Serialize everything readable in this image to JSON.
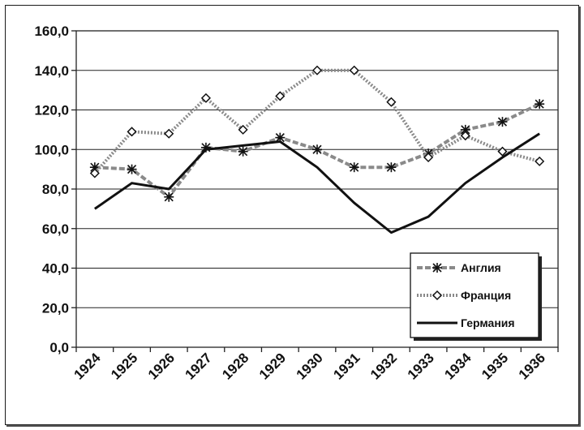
{
  "chart_data": {
    "type": "line",
    "categories": [
      "1924",
      "1925",
      "1926",
      "1927",
      "1928",
      "1929",
      "1930",
      "1931",
      "1932",
      "1933",
      "1934",
      "1935",
      "1936"
    ],
    "ylim": [
      0,
      160
    ],
    "yticks": [
      0,
      20,
      40,
      60,
      80,
      100,
      120,
      140,
      160
    ],
    "ytick_labels": [
      "0,0",
      "20,0",
      "40,0",
      "60,0",
      "80,0",
      "100,0",
      "120,0",
      "140,0",
      "160,0"
    ],
    "grid": true,
    "legend_position": "bottom-right",
    "series": [
      {
        "name": "Англия",
        "marker": "asterisk",
        "style": "dashed-gray",
        "color": "#8a8a8a",
        "points": [
          {
            "x": "1924",
            "y": 91
          },
          {
            "x": "1925",
            "y": 90
          },
          {
            "x": "1926",
            "y": 76
          },
          {
            "x": "1927",
            "y": 101
          },
          {
            "x": "1928",
            "y": 99
          },
          {
            "x": "1929",
            "y": 106
          },
          {
            "x": "1930",
            "y": 100
          },
          {
            "x": "1931",
            "y": 91
          },
          {
            "x": "1932",
            "y": 91
          },
          {
            "x": "1933",
            "y": 98
          },
          {
            "x": "1934",
            "y": 110
          },
          {
            "x": "1935",
            "y": 114
          },
          {
            "x": "1936",
            "y": 123
          }
        ]
      },
      {
        "name": "Франция",
        "marker": "diamond",
        "style": "dotted-gray",
        "color": "#8a8a8a",
        "points": [
          {
            "x": "1924",
            "y": 88
          },
          {
            "x": "1925",
            "y": 109
          },
          {
            "x": "1926",
            "y": 108
          },
          {
            "x": "1927",
            "y": 126
          },
          {
            "x": "1928",
            "y": 110
          },
          {
            "x": "1929",
            "y": 127
          },
          {
            "x": "1930",
            "y": 140
          },
          {
            "x": "1931",
            "y": 140
          },
          {
            "x": "1932",
            "y": 124
          },
          {
            "x": "1933",
            "y": 96
          },
          {
            "x": "1934",
            "y": 107
          },
          {
            "x": "1935",
            "y": 99
          },
          {
            "x": "1936",
            "y": 94
          }
        ]
      },
      {
        "name": "Германия",
        "marker": "none",
        "style": "solid",
        "color": "#111111",
        "points": [
          {
            "x": "1924",
            "y": 70
          },
          {
            "x": "1925",
            "y": 83
          },
          {
            "x": "1926",
            "y": 80
          },
          {
            "x": "1927",
            "y": 100
          },
          {
            "x": "1928",
            "y": 102
          },
          {
            "x": "1929",
            "y": 104
          },
          {
            "x": "1930",
            "y": 91
          },
          {
            "x": "1931",
            "y": 73
          },
          {
            "x": "1932",
            "y": 58
          },
          {
            "x": "1933",
            "y": 66
          },
          {
            "x": "1934",
            "y": 83
          },
          {
            "x": "1935",
            "y": 96
          },
          {
            "x": "1936",
            "y": 108
          }
        ]
      }
    ]
  }
}
